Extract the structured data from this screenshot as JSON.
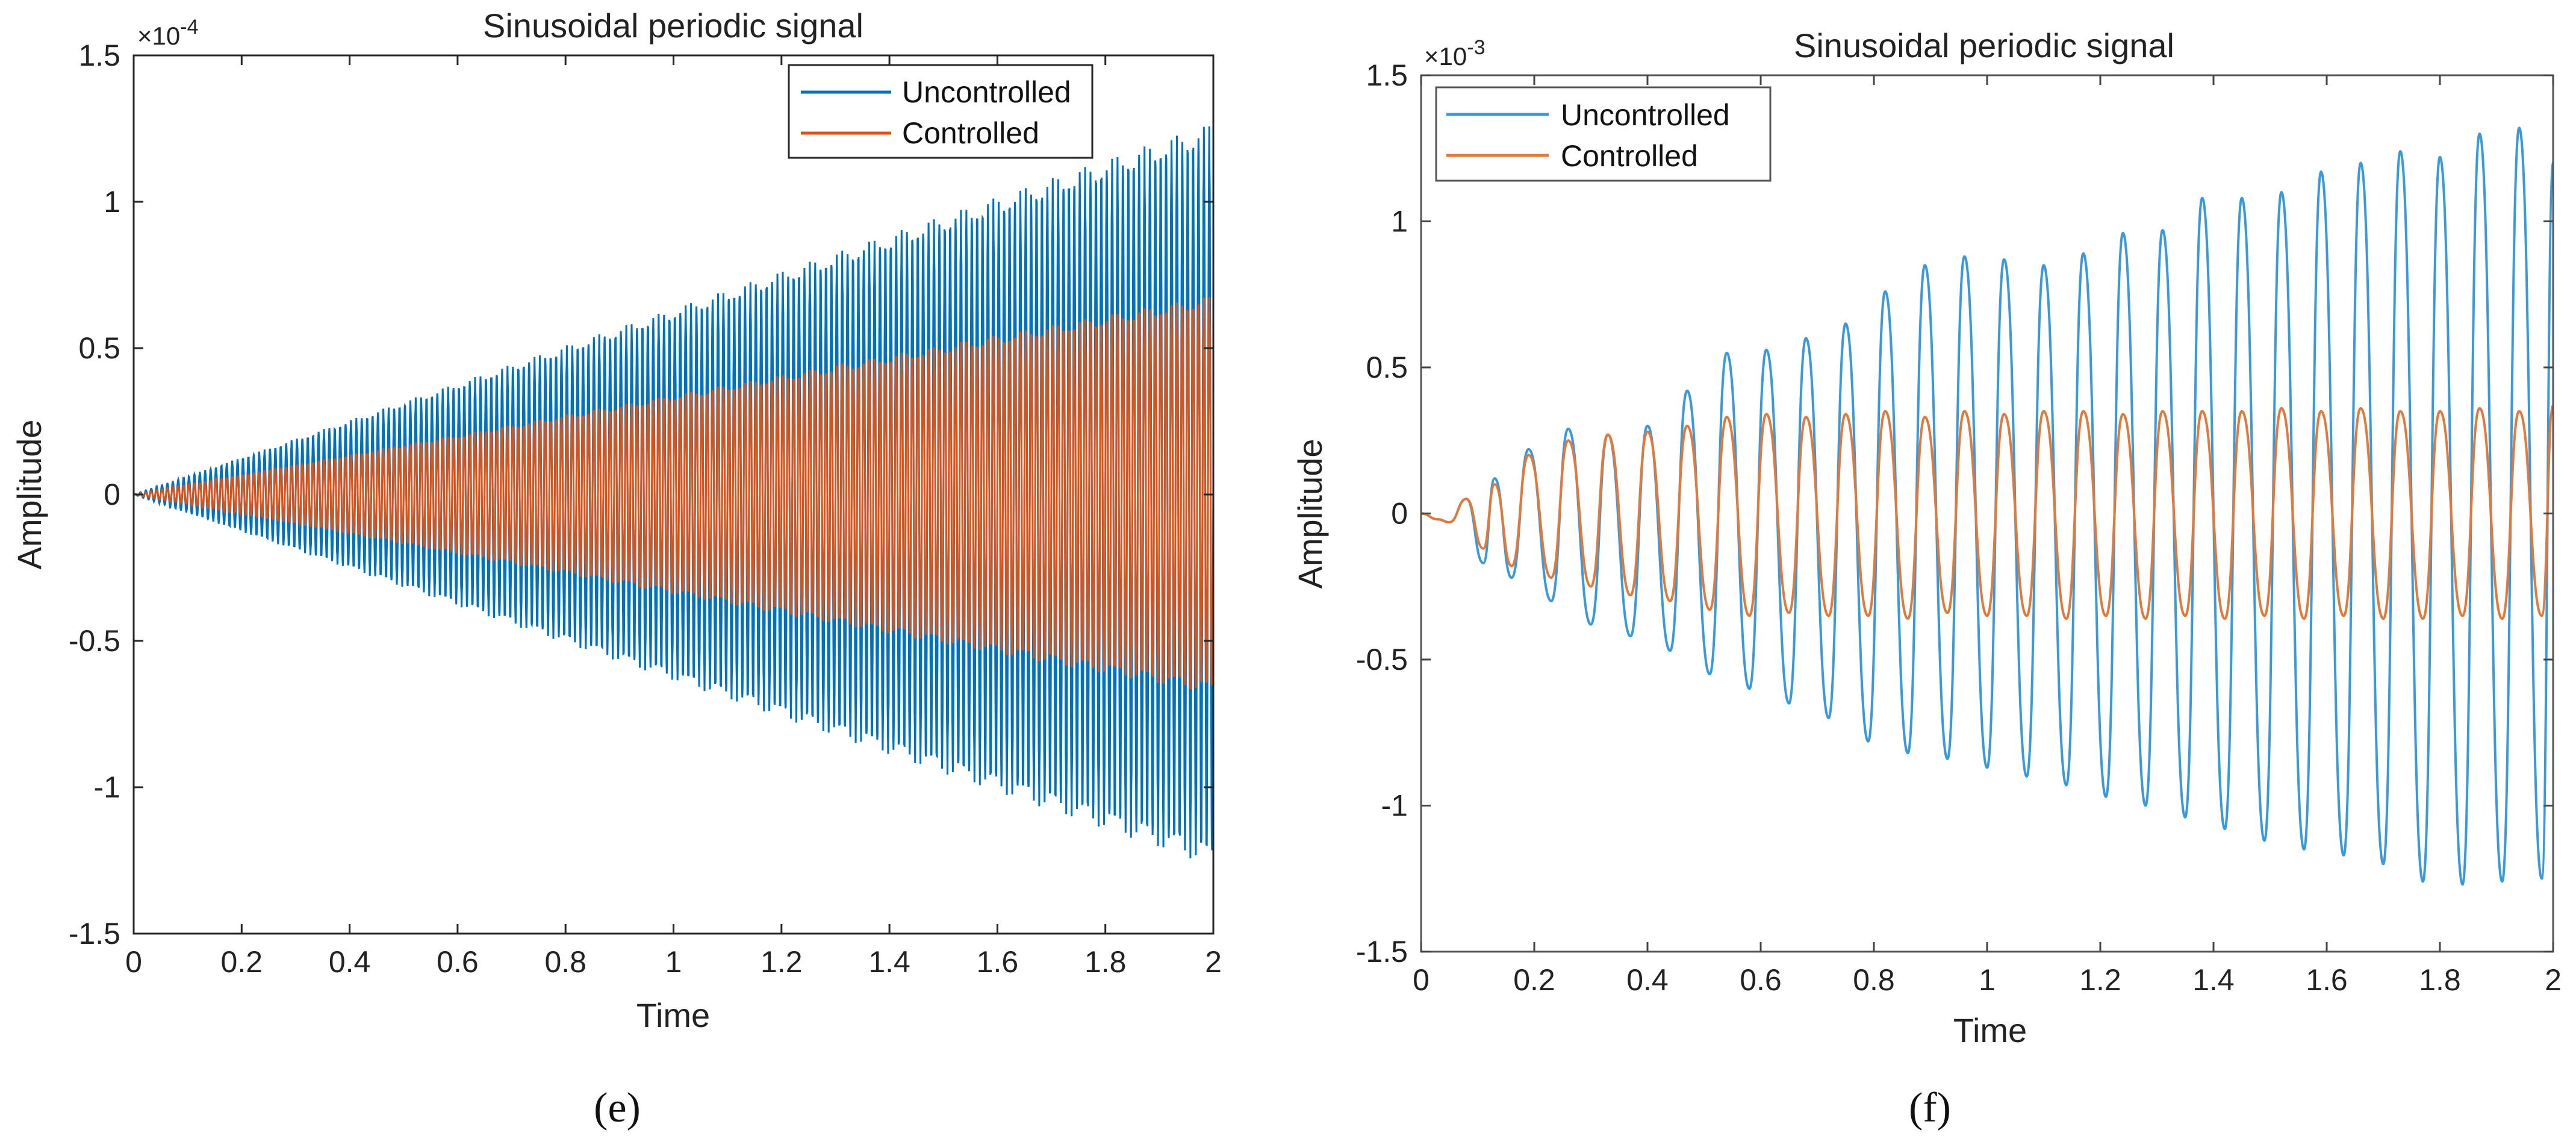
{
  "chart_data": [
    {
      "panel_label": "(e)",
      "type": "line",
      "title": "Sinusoidal periodic signal",
      "xlabel": "Time",
      "ylabel": "Amplitude",
      "y_exponent_base": "×10",
      "y_exponent_power": "-4",
      "xlim": [
        0,
        2
      ],
      "ylim": [
        -1.5,
        1.5
      ],
      "xticks": [
        "0",
        "0.2",
        "0.4",
        "0.6",
        "0.8",
        "1",
        "1.2",
        "1.4",
        "1.6",
        "1.8",
        "2"
      ],
      "yticks": [
        "-1.5",
        "-1",
        "-0.5",
        "0",
        "0.5",
        "1",
        "1.5"
      ],
      "legend_position": "top-right",
      "grid": false,
      "series": [
        {
          "name": "Uncontrolled",
          "color": "#0072bd",
          "envelope_end": 1.27,
          "oscillation_frequency": 100
        },
        {
          "name": "Controlled",
          "color": "#d95319",
          "envelope_end": 0.68,
          "oscillation_frequency": 100
        }
      ]
    },
    {
      "panel_label": "(f)",
      "type": "line",
      "title": "Sinusoidal periodic signal",
      "xlabel": "Time",
      "ylabel": "Amplitude",
      "y_exponent_base": "×10",
      "y_exponent_power": "-3",
      "xlim": [
        0,
        2
      ],
      "ylim": [
        -1.5,
        1.5
      ],
      "xticks": [
        "0",
        "0.2",
        "0.4",
        "0.6",
        "0.8",
        "1",
        "1.2",
        "1.4",
        "1.6",
        "1.8",
        "2"
      ],
      "yticks": [
        "-1.5",
        "-1",
        "-0.5",
        "0",
        "0.5",
        "1",
        "1.5"
      ],
      "legend_position": "top-left",
      "grid": false,
      "series": [
        {
          "name": "Uncontrolled",
          "color": "#3a9ad9",
          "peaks": {
            "x": [
              0.08,
              0.13,
              0.19,
              0.26,
              0.33,
              0.4,
              0.47,
              0.54,
              0.61,
              0.68,
              0.75,
              0.82,
              0.89,
              0.96,
              1.03,
              1.1,
              1.17,
              1.24,
              1.31,
              1.38,
              1.45,
              1.52,
              1.59,
              1.66,
              1.73,
              1.8,
              1.87,
              1.94,
              2.0
            ],
            "y": [
              0.05,
              0.12,
              0.22,
              0.29,
              0.27,
              0.3,
              0.42,
              0.55,
              0.56,
              0.6,
              0.65,
              0.76,
              0.85,
              0.88,
              0.87,
              0.85,
              0.89,
              0.96,
              0.97,
              1.08,
              1.08,
              1.1,
              1.17,
              1.2,
              1.24,
              1.22,
              1.3,
              1.32,
              1.2
            ]
          },
          "troughs": {
            "x": [
              0.11,
              0.16,
              0.23,
              0.3,
              0.37,
              0.44,
              0.51,
              0.58,
              0.65,
              0.72,
              0.79,
              0.86,
              0.93,
              1.0,
              1.07,
              1.14,
              1.21,
              1.28,
              1.35,
              1.42,
              1.49,
              1.56,
              1.63,
              1.7,
              1.77,
              1.84,
              1.91,
              1.98
            ],
            "y": [
              -0.17,
              -0.22,
              -0.3,
              -0.38,
              -0.42,
              -0.47,
              -0.55,
              -0.6,
              -0.65,
              -0.7,
              -0.78,
              -0.82,
              -0.84,
              -0.87,
              -0.9,
              -0.93,
              -0.97,
              -1.0,
              -1.04,
              -1.08,
              -1.12,
              -1.15,
              -1.17,
              -1.2,
              -1.26,
              -1.27,
              -1.26,
              -1.25
            ]
          }
        },
        {
          "name": "Controlled",
          "color": "#e0793a",
          "peaks": {
            "x": [
              0.08,
              0.13,
              0.19,
              0.26,
              0.33,
              0.4,
              0.47,
              0.54,
              0.61,
              0.68,
              0.75,
              0.82,
              0.89,
              0.96,
              1.03,
              1.1,
              1.17,
              1.24,
              1.31,
              1.38,
              1.45,
              1.52,
              1.59,
              1.66,
              1.73,
              1.8,
              1.87,
              1.94,
              2.0
            ],
            "y": [
              0.05,
              0.1,
              0.2,
              0.25,
              0.27,
              0.28,
              0.3,
              0.33,
              0.34,
              0.33,
              0.34,
              0.35,
              0.33,
              0.35,
              0.34,
              0.35,
              0.35,
              0.34,
              0.35,
              0.35,
              0.35,
              0.36,
              0.35,
              0.36,
              0.35,
              0.35,
              0.36,
              0.35,
              0.37
            ]
          },
          "troughs": {
            "x": [
              0.11,
              0.16,
              0.23,
              0.3,
              0.37,
              0.44,
              0.51,
              0.58,
              0.65,
              0.72,
              0.79,
              0.86,
              0.93,
              1.0,
              1.07,
              1.14,
              1.21,
              1.28,
              1.35,
              1.42,
              1.49,
              1.56,
              1.63,
              1.7,
              1.77,
              1.84,
              1.91,
              1.98
            ],
            "y": [
              -0.12,
              -0.18,
              -0.22,
              -0.25,
              -0.28,
              -0.3,
              -0.33,
              -0.35,
              -0.34,
              -0.35,
              -0.35,
              -0.36,
              -0.34,
              -0.35,
              -0.35,
              -0.36,
              -0.35,
              -0.36,
              -0.35,
              -0.36,
              -0.35,
              -0.36,
              -0.35,
              -0.36,
              -0.36,
              -0.35,
              -0.36,
              -0.35
            ]
          }
        }
      ]
    }
  ]
}
